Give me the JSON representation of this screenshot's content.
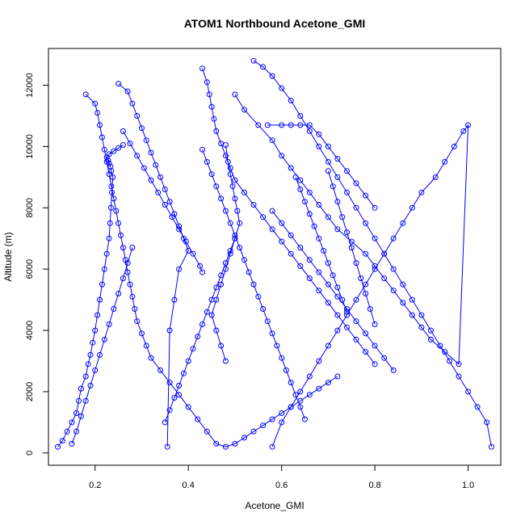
{
  "chart_data": {
    "type": "scatter",
    "title": "ATOM1 Northbound Acetone_GMI",
    "xlabel": "Acetone_GMI",
    "ylabel": "Altitude (m)",
    "xlim": [
      0.1,
      1.07
    ],
    "ylim": [
      -400,
      13200
    ],
    "xticks": [
      0.2,
      0.4,
      0.6,
      0.8,
      1.0
    ],
    "xtick_labels": [
      "0.2",
      "0.4",
      "0.6",
      "0.8",
      "1.0"
    ],
    "yticks": [
      0,
      2000,
      4000,
      6000,
      8000,
      10000,
      12000
    ],
    "ytick_labels": [
      "0",
      "2000",
      "4000",
      "6000",
      "8000",
      "10000",
      "12000"
    ],
    "grid": false,
    "legend": "none",
    "series_color": "#0000FF",
    "series": [
      {
        "x": [
          0.12,
          0.13,
          0.14,
          0.15,
          0.16,
          0.165,
          0.17,
          0.18,
          0.185,
          0.19,
          0.195,
          0.2,
          0.205,
          0.21,
          0.215,
          0.22,
          0.225,
          0.23,
          0.232,
          0.234,
          0.236,
          0.238,
          0.235,
          0.233,
          0.23,
          0.228,
          0.225,
          0.23,
          0.24,
          0.25,
          0.26
        ],
        "y": [
          200,
          400,
          700,
          1000,
          1300,
          1700,
          2100,
          2500,
          2900,
          3200,
          3600,
          4000,
          4500,
          5000,
          5500,
          6000,
          6500,
          7000,
          7500,
          8000,
          8500,
          9000,
          9200,
          9350,
          9450,
          9550,
          9650,
          9750,
          9850,
          9950,
          10050
        ]
      },
      {
        "x": [
          0.26,
          0.275,
          0.29,
          0.305,
          0.32,
          0.335,
          0.35,
          0.365,
          0.38,
          0.395,
          0.41,
          0.425,
          0.43
        ],
        "y": [
          10500,
          10100,
          9700,
          9300,
          8900,
          8500,
          8100,
          7700,
          7300,
          6900,
          6500,
          6100,
          5900
        ]
      },
      {
        "x": [
          0.18,
          0.2,
          0.205,
          0.21,
          0.215,
          0.22,
          0.225,
          0.23,
          0.235,
          0.24,
          0.245,
          0.25,
          0.255,
          0.26,
          0.265,
          0.27,
          0.275,
          0.28,
          0.285,
          0.29,
          0.3,
          0.31,
          0.32,
          0.34,
          0.36,
          0.38,
          0.4,
          0.42,
          0.44,
          0.46,
          0.48,
          0.5,
          0.52,
          0.54,
          0.56,
          0.58,
          0.6,
          0.62,
          0.64,
          0.66,
          0.68,
          0.7,
          0.72
        ],
        "y": [
          11700,
          11400,
          11100,
          10700,
          10300,
          9900,
          9500,
          9100,
          8700,
          8300,
          7900,
          7500,
          7100,
          6700,
          6300,
          5900,
          5500,
          5100,
          4700,
          4300,
          3900,
          3500,
          3100,
          2700,
          2300,
          1900,
          1500,
          1100,
          700,
          300,
          200,
          300,
          500,
          700,
          900,
          1100,
          1300,
          1500,
          1700,
          1900,
          2100,
          2300,
          2500
        ]
      },
      {
        "x": [
          0.54,
          0.56,
          0.58,
          0.6,
          0.62,
          0.64,
          0.66,
          0.68,
          0.7,
          0.72,
          0.74,
          0.76,
          0.78,
          0.8,
          0.82,
          0.84,
          0.86,
          0.88,
          0.9,
          0.92,
          0.94,
          0.96,
          0.98,
          1.0,
          1.02,
          1.04,
          1.05
        ],
        "y": [
          12800,
          12600,
          12300,
          11900,
          11500,
          11000,
          10500,
          10000,
          9500,
          9000,
          8500,
          8000,
          7500,
          7000,
          6500,
          6000,
          5500,
          5000,
          4500,
          4000,
          3500,
          3000,
          2500,
          2000,
          1500,
          1000,
          200
        ]
      },
      {
        "x": [
          0.43,
          0.44,
          0.445,
          0.45,
          0.455,
          0.46,
          0.47,
          0.48,
          0.49,
          0.5,
          0.52,
          0.54,
          0.56,
          0.58,
          0.6,
          0.62,
          0.64,
          0.66,
          0.68,
          0.7,
          0.72,
          0.74,
          0.76,
          0.78,
          0.8
        ],
        "y": [
          12550,
          12100,
          11700,
          11300,
          10900,
          10500,
          10100,
          9700,
          9300,
          8900,
          8500,
          8100,
          7700,
          7300,
          6900,
          6500,
          6100,
          5700,
          5300,
          4900,
          4500,
          4100,
          3700,
          3300,
          2900
        ]
      },
      {
        "x": [
          0.25,
          0.27,
          0.28,
          0.29,
          0.3,
          0.31,
          0.32,
          0.33,
          0.34,
          0.35,
          0.36,
          0.37,
          0.38,
          0.39,
          0.4,
          0.38,
          0.37,
          0.36,
          0.355
        ],
        "y": [
          12050,
          11800,
          11400,
          11000,
          10600,
          10200,
          9800,
          9400,
          9000,
          8600,
          8200,
          7800,
          7400,
          7000,
          6600,
          6000,
          5000,
          4000,
          200
        ]
      },
      {
        "x": [
          0.5,
          0.52,
          0.55,
          0.58,
          0.6,
          0.62,
          0.64,
          0.66,
          0.68,
          0.7,
          0.72,
          0.75,
          0.78,
          0.8,
          0.82,
          0.84,
          0.86,
          0.88,
          0.9,
          0.92,
          0.95,
          0.98,
          1.0,
          0.99,
          0.97,
          0.95,
          0.93,
          0.9,
          0.88,
          0.86,
          0.84,
          0.82,
          0.8,
          0.78,
          0.76,
          0.74,
          0.72,
          0.7,
          0.68,
          0.66,
          0.64,
          0.62,
          0.6,
          0.58
        ],
        "y": [
          11700,
          11200,
          10700,
          10200,
          9700,
          9300,
          8900,
          8500,
          8100,
          7700,
          7300,
          6900,
          6500,
          6100,
          5700,
          5300,
          4900,
          4500,
          4100,
          3700,
          3300,
          2900,
          10700,
          10500,
          10000,
          9500,
          9000,
          8500,
          8000,
          7500,
          7000,
          6500,
          6000,
          5500,
          5000,
          4500,
          4000,
          3500,
          3000,
          2500,
          2000,
          1500,
          1000,
          200
        ]
      },
      {
        "x": [
          0.57,
          0.6,
          0.62,
          0.64,
          0.66,
          0.68,
          0.7,
          0.72,
          0.74,
          0.76,
          0.78,
          0.8
        ],
        "y": [
          10700,
          10700,
          10700,
          10700,
          10700,
          10400,
          10000,
          9600,
          9200,
          8800,
          8400,
          8000
        ]
      },
      {
        "x": [
          0.48,
          0.485,
          0.49,
          0.495,
          0.5,
          0.505,
          0.51,
          0.5,
          0.49,
          0.48,
          0.47,
          0.46,
          0.45,
          0.46,
          0.47,
          0.48
        ],
        "y": [
          10050,
          9500,
          9100,
          8700,
          8300,
          7900,
          7500,
          7000,
          6500,
          6000,
          5500,
          5000,
          4500,
          4000,
          3500,
          3000
        ]
      },
      {
        "x": [
          0.15,
          0.16,
          0.17,
          0.18,
          0.19,
          0.2,
          0.21,
          0.22,
          0.23,
          0.24,
          0.25,
          0.26,
          0.27,
          0.28
        ],
        "y": [
          300,
          700,
          1200,
          1700,
          2200,
          2700,
          3200,
          3700,
          4200,
          4700,
          5200,
          5700,
          6200,
          6700
        ]
      },
      {
        "x": [
          0.35,
          0.36,
          0.37,
          0.38,
          0.39,
          0.4,
          0.41,
          0.42,
          0.43,
          0.44,
          0.45,
          0.46,
          0.47,
          0.48,
          0.49,
          0.5
        ],
        "y": [
          1000,
          1400,
          1800,
          2200,
          2600,
          3000,
          3400,
          3800,
          4200,
          4600,
          5000,
          5400,
          5800,
          6200,
          6600,
          7000
        ]
      },
      {
        "x": [
          0.58,
          0.6,
          0.62,
          0.64,
          0.66,
          0.68,
          0.7,
          0.72,
          0.74,
          0.76,
          0.78,
          0.8,
          0.82,
          0.84
        ],
        "y": [
          7900,
          7500,
          7100,
          6700,
          6300,
          5900,
          5500,
          5100,
          4700,
          4300,
          3900,
          3500,
          3100,
          2700
        ]
      },
      {
        "x": [
          0.63,
          0.64,
          0.65,
          0.66,
          0.67,
          0.68,
          0.69,
          0.7,
          0.71,
          0.72,
          0.73,
          0.74
        ],
        "y": [
          9000,
          8600,
          8200,
          7800,
          7400,
          7000,
          6600,
          6200,
          5800,
          5400,
          5000,
          4600
        ]
      },
      {
        "x": [
          0.7,
          0.71,
          0.72,
          0.73,
          0.74,
          0.75,
          0.76,
          0.77,
          0.78,
          0.79,
          0.8
        ],
        "y": [
          9200,
          8700,
          8200,
          7700,
          7200,
          6700,
          6200,
          5700,
          5200,
          4700,
          4200
        ]
      },
      {
        "x": [
          0.43,
          0.44,
          0.45,
          0.46,
          0.47,
          0.48,
          0.49,
          0.5,
          0.51,
          0.52,
          0.53,
          0.54,
          0.55,
          0.56,
          0.57,
          0.58,
          0.59,
          0.6,
          0.61,
          0.62,
          0.63,
          0.64,
          0.65
        ],
        "y": [
          9900,
          9500,
          9100,
          8700,
          8300,
          7900,
          7500,
          7100,
          6700,
          6300,
          5900,
          5500,
          5100,
          4700,
          4300,
          3900,
          3500,
          3100,
          2700,
          2300,
          1900,
          1500,
          1100
        ]
      }
    ]
  }
}
